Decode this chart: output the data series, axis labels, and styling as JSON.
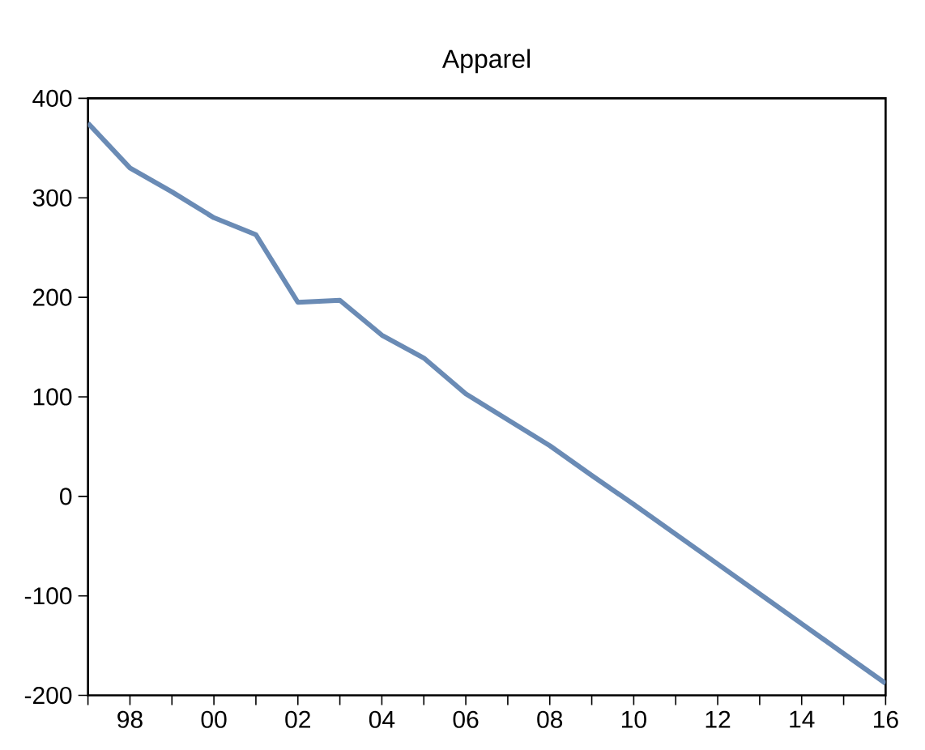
{
  "chart_data": {
    "type": "line",
    "title": "Apparel",
    "x": [
      1997,
      1998,
      1999,
      2000,
      2001,
      2002,
      2003,
      2004,
      2005,
      2006,
      2007,
      2008,
      2009,
      2010,
      2011,
      2012,
      2013,
      2014,
      2015,
      2016
    ],
    "series": [
      {
        "color": "#6a8bb5",
        "values": [
          375,
          330,
          306,
          280,
          263,
          195,
          197,
          162,
          139,
          103,
          77,
          51,
          21,
          -8,
          -38,
          -68,
          -98,
          -128,
          -158,
          -188
        ]
      }
    ],
    "xlim": [
      1997,
      2016
    ],
    "xticks": [
      {
        "value": 1997,
        "label": null
      },
      {
        "value": 1998,
        "label": "98"
      },
      {
        "value": 1999,
        "label": null
      },
      {
        "value": 2000,
        "label": "00"
      },
      {
        "value": 2001,
        "label": null
      },
      {
        "value": 2002,
        "label": "02"
      },
      {
        "value": 2003,
        "label": null
      },
      {
        "value": 2004,
        "label": "04"
      },
      {
        "value": 2005,
        "label": null
      },
      {
        "value": 2006,
        "label": "06"
      },
      {
        "value": 2007,
        "label": null
      },
      {
        "value": 2008,
        "label": "08"
      },
      {
        "value": 2009,
        "label": null
      },
      {
        "value": 2010,
        "label": "10"
      },
      {
        "value": 2011,
        "label": null
      },
      {
        "value": 2012,
        "label": "12"
      },
      {
        "value": 2013,
        "label": null
      },
      {
        "value": 2014,
        "label": "14"
      },
      {
        "value": 2015,
        "label": null
      },
      {
        "value": 2016,
        "label": "16"
      }
    ],
    "ylim": [
      -200,
      400
    ],
    "yticks": [
      -200,
      -100,
      0,
      100,
      200,
      300,
      400
    ],
    "grid": false,
    "legend": false,
    "marker": "none",
    "line_style": "solid"
  }
}
